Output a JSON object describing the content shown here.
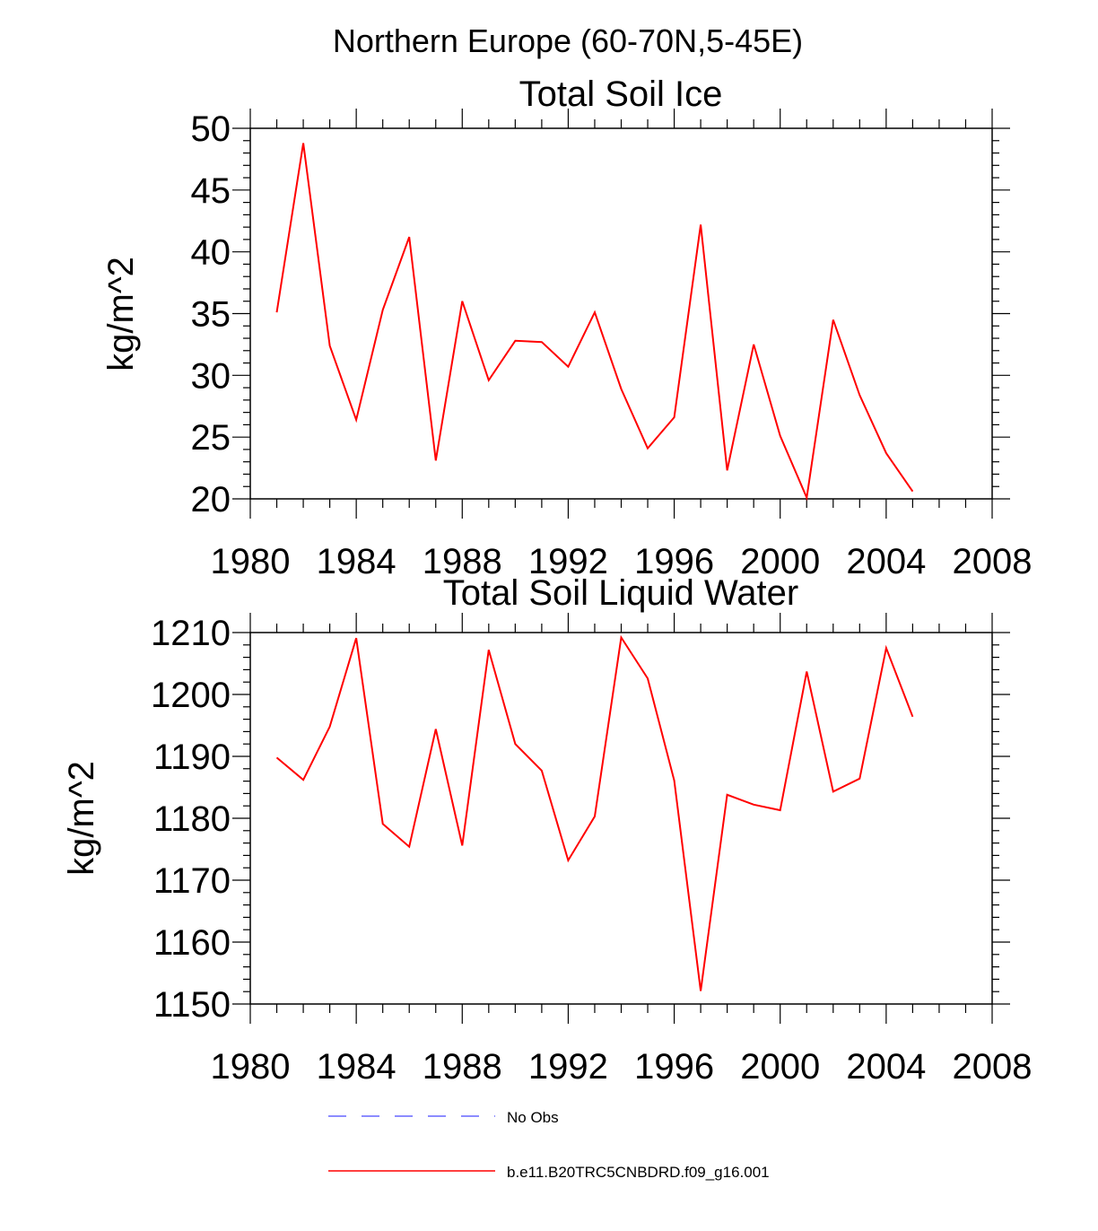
{
  "figure_title": "Northern Europe (60-70N,5-45E)",
  "chart_data": [
    {
      "type": "line",
      "title": "Total Soil Ice",
      "xlabel": "",
      "ylabel": "kg/m^2",
      "xlim": [
        1980,
        2008
      ],
      "ylim": [
        20,
        50
      ],
      "xticks": [
        1980,
        1984,
        1988,
        1992,
        1996,
        2000,
        2004,
        2008
      ],
      "yticks": [
        20,
        25,
        30,
        35,
        40,
        45,
        50
      ],
      "x": [
        1981,
        1982,
        1983,
        1984,
        1985,
        1986,
        1987,
        1988,
        1989,
        1990,
        1991,
        1992,
        1993,
        1994,
        1995,
        1996,
        1997,
        1998,
        1999,
        2000,
        2001,
        2002,
        2003,
        2004,
        2005
      ],
      "series": [
        {
          "name": "b.e11.B20TRC5CNBDRD.f09_g16.001",
          "color": "#ff0000",
          "values": [
            35.1,
            48.8,
            32.4,
            26.4,
            35.3,
            41.2,
            23.1,
            36.0,
            29.6,
            32.8,
            32.7,
            30.7,
            35.1,
            28.9,
            24.1,
            26.6,
            42.2,
            22.3,
            32.5,
            25.1,
            20.1,
            34.5,
            28.4,
            23.7,
            20.6
          ]
        }
      ]
    },
    {
      "type": "line",
      "title": "Total Soil Liquid Water",
      "xlabel": "",
      "ylabel": "kg/m^2",
      "xlim": [
        1980,
        2008
      ],
      "ylim": [
        1150,
        1210
      ],
      "xticks": [
        1980,
        1984,
        1988,
        1992,
        1996,
        2000,
        2004,
        2008
      ],
      "yticks": [
        1150,
        1160,
        1170,
        1180,
        1190,
        1200,
        1210
      ],
      "x": [
        1981,
        1982,
        1983,
        1984,
        1985,
        1986,
        1987,
        1988,
        1989,
        1990,
        1991,
        1992,
        1993,
        1994,
        1995,
        1996,
        1997,
        1998,
        1999,
        2000,
        2001,
        2002,
        2003,
        2004,
        2005
      ],
      "series": [
        {
          "name": "b.e11.B20TRC5CNBDRD.f09_g16.001",
          "color": "#ff0000",
          "values": [
            1189.8,
            1186.2,
            1194.8,
            1209.1,
            1179.1,
            1175.4,
            1194.4,
            1175.6,
            1207.2,
            1192.0,
            1187.7,
            1173.2,
            1180.3,
            1209.2,
            1202.6,
            1186.1,
            1152.1,
            1183.8,
            1182.2,
            1181.3,
            1203.7,
            1184.3,
            1186.4,
            1207.5,
            1196.4
          ]
        }
      ]
    }
  ],
  "legend": [
    {
      "label": "No Obs",
      "color": "#6666ff",
      "style": "dashed"
    },
    {
      "label": "b.e11.B20TRC5CNBDRD.f09_g16.001",
      "color": "#ff0000",
      "style": "solid"
    }
  ]
}
